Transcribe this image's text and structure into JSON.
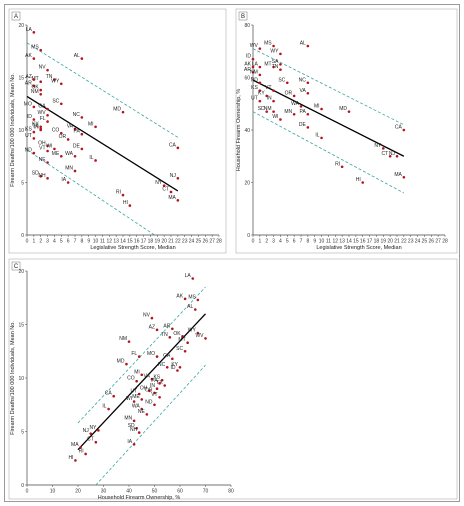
{
  "colors": {
    "point": "#b4141e",
    "fit": "#000000",
    "band": "#3aa6a0",
    "axis": "#444444"
  },
  "chart_data": [
    {
      "type": "scatter",
      "panel": "A",
      "xlabel": "Legislative Strength Score, Median",
      "ylabel": "Firearm Deaths/100 000 Individuals, Mean No.",
      "xlim": [
        0,
        28
      ],
      "ylim": [
        0,
        20
      ],
      "xticks": [
        0,
        1,
        2,
        3,
        4,
        5,
        6,
        7,
        8,
        9,
        10,
        11,
        12,
        13,
        14,
        15,
        16,
        17,
        18,
        19,
        20,
        21,
        22,
        23,
        24,
        25,
        26,
        27,
        28
      ],
      "yticks": [
        0,
        5,
        10,
        15,
        20
      ],
      "fit": [
        [
          0,
          13.2
        ],
        [
          22,
          4.2
        ]
      ],
      "band_upper": [
        [
          0,
          18.3
        ],
        [
          22,
          9.3
        ]
      ],
      "band_lower": [
        [
          0,
          8.1
        ],
        [
          18.6,
          0
        ]
      ],
      "points": [
        {
          "label": "LA",
          "x": 1,
          "y": 19.3
        },
        {
          "label": "MS",
          "x": 2,
          "y": 17.6
        },
        {
          "label": "AK",
          "x": 1,
          "y": 16.8
        },
        {
          "label": "AL",
          "x": 8,
          "y": 16.8
        },
        {
          "label": "NV",
          "x": 3,
          "y": 15.7
        },
        {
          "label": "MT",
          "x": 2,
          "y": 14.6
        },
        {
          "label": "AZ",
          "x": 1,
          "y": 14.8
        },
        {
          "label": "TN",
          "x": 4,
          "y": 14.8
        },
        {
          "label": "WY",
          "x": 5,
          "y": 14.4
        },
        {
          "label": "AR",
          "x": 1,
          "y": 14.2
        },
        {
          "label": "OK",
          "x": 2,
          "y": 13.8
        },
        {
          "label": "NM",
          "x": 2,
          "y": 13.4
        },
        {
          "label": "SC",
          "x": 5,
          "y": 12.5
        },
        {
          "label": "MO",
          "x": 1,
          "y": 12.2
        },
        {
          "label": "GA",
          "x": 3,
          "y": 12.0
        },
        {
          "label": "WV",
          "x": 3,
          "y": 11.4
        },
        {
          "label": "NC",
          "x": 8,
          "y": 11.2
        },
        {
          "label": "MD",
          "x": 14,
          "y": 11.7
        },
        {
          "label": "ID",
          "x": 1,
          "y": 11.0
        },
        {
          "label": "FL",
          "x": 3,
          "y": 10.8
        },
        {
          "label": "KY",
          "x": 2,
          "y": 10.3
        },
        {
          "label": "IN",
          "x": 2,
          "y": 10.0
        },
        {
          "label": "KS",
          "x": 1,
          "y": 9.8
        },
        {
          "label": "TX",
          "x": 2,
          "y": 10.1
        },
        {
          "label": "CO",
          "x": 5,
          "y": 9.7
        },
        {
          "label": "VA",
          "x": 7,
          "y": 10.1
        },
        {
          "label": "MI",
          "x": 10,
          "y": 10.3
        },
        {
          "label": "PA",
          "x": 8,
          "y": 9.6
        },
        {
          "label": "UT",
          "x": 1,
          "y": 9.2
        },
        {
          "label": "OR",
          "x": 6,
          "y": 9.1
        },
        {
          "label": "OH",
          "x": 3,
          "y": 8.5
        },
        {
          "label": "CA",
          "x": 22,
          "y": 8.3
        },
        {
          "label": "VT",
          "x": 3,
          "y": 8.0
        },
        {
          "label": "WI",
          "x": 4,
          "y": 8.2
        },
        {
          "label": "DE",
          "x": 8,
          "y": 8.2
        },
        {
          "label": "ND",
          "x": 1,
          "y": 7.8
        },
        {
          "label": "ME",
          "x": 5,
          "y": 7.5
        },
        {
          "label": "WA",
          "x": 7,
          "y": 7.5
        },
        {
          "label": "IL",
          "x": 10,
          "y": 7.1
        },
        {
          "label": "NE",
          "x": 3,
          "y": 6.9
        },
        {
          "label": "MN",
          "x": 7,
          "y": 6.1
        },
        {
          "label": "SD",
          "x": 2,
          "y": 5.6
        },
        {
          "label": "NH",
          "x": 3,
          "y": 5.4
        },
        {
          "label": "IA",
          "x": 6,
          "y": 5.0
        },
        {
          "label": "NJ",
          "x": 22,
          "y": 5.4
        },
        {
          "label": "NY",
          "x": 20,
          "y": 4.7
        },
        {
          "label": "RI",
          "x": 14,
          "y": 3.8
        },
        {
          "label": "CT",
          "x": 21,
          "y": 4.1
        },
        {
          "label": "MA",
          "x": 22,
          "y": 3.3
        },
        {
          "label": "HI",
          "x": 15,
          "y": 2.8
        }
      ]
    },
    {
      "type": "scatter",
      "panel": "B",
      "xlabel": "Legislative Strength Score, Median",
      "ylabel": "Household Firearm Ownership, %",
      "xlim": [
        0,
        28
      ],
      "ylim": [
        0,
        80
      ],
      "xticks": [
        0,
        1,
        2,
        3,
        4,
        5,
        6,
        7,
        8,
        9,
        10,
        11,
        12,
        13,
        14,
        15,
        16,
        17,
        18,
        19,
        20,
        21,
        22,
        23,
        24,
        25,
        26,
        27,
        28
      ],
      "yticks": [
        0,
        20,
        40,
        60,
        80
      ],
      "fit": [
        [
          0,
          59
        ],
        [
          22,
          30
        ]
      ],
      "band_upper": [
        [
          0,
          71
        ],
        [
          22,
          42
        ]
      ],
      "band_lower": [
        [
          0,
          47
        ],
        [
          22,
          16
        ]
      ],
      "points": [
        {
          "label": "WV",
          "x": 1,
          "y": 71
        },
        {
          "label": "MS",
          "x": 3,
          "y": 72
        },
        {
          "label": "AL",
          "x": 8,
          "y": 72
        },
        {
          "label": "WY",
          "x": 4,
          "y": 69
        },
        {
          "label": "ID",
          "x": 0,
          "y": 67
        },
        {
          "label": "AK",
          "x": 0,
          "y": 64
        },
        {
          "label": "LA",
          "x": 1,
          "y": 64
        },
        {
          "label": "MT",
          "x": 3,
          "y": 64
        },
        {
          "label": "SA",
          "x": 4,
          "y": 65
        },
        {
          "label": "TN",
          "x": 4,
          "y": 63
        },
        {
          "label": "AR",
          "x": 0,
          "y": 62
        },
        {
          "label": "NM",
          "x": 1,
          "y": 61
        },
        {
          "label": "ND",
          "x": 1,
          "y": 58
        },
        {
          "label": "SC",
          "x": 5,
          "y": 58
        },
        {
          "label": "NC",
          "x": 8,
          "y": 58
        },
        {
          "label": "KS",
          "x": 1,
          "y": 55
        },
        {
          "label": "VT",
          "x": 3,
          "y": 55
        },
        {
          "label": "VA",
          "x": 8,
          "y": 54
        },
        {
          "label": "OR",
          "x": 6,
          "y": 53
        },
        {
          "label": "UT",
          "x": 1,
          "y": 51
        },
        {
          "label": "KY",
          "x": 2,
          "y": 53
        },
        {
          "label": "IN",
          "x": 3,
          "y": 51
        },
        {
          "label": "WA",
          "x": 7,
          "y": 49
        },
        {
          "label": "MI",
          "x": 10,
          "y": 48
        },
        {
          "label": "MD",
          "x": 14,
          "y": 47
        },
        {
          "label": "SD",
          "x": 2,
          "y": 47
        },
        {
          "label": "NM",
          "x": 3,
          "y": 47
        },
        {
          "label": "MN",
          "x": 6,
          "y": 46
        },
        {
          "label": "WI",
          "x": 4,
          "y": 44
        },
        {
          "label": "PA",
          "x": 8,
          "y": 46
        },
        {
          "label": "DE",
          "x": 8,
          "y": 41
        },
        {
          "label": "IL",
          "x": 10,
          "y": 37
        },
        {
          "label": "CA",
          "x": 22,
          "y": 40
        },
        {
          "label": "NY",
          "x": 19,
          "y": 33
        },
        {
          "label": "NJ",
          "x": 21,
          "y": 30
        },
        {
          "label": "CT",
          "x": 20,
          "y": 30
        },
        {
          "label": "RI",
          "x": 13,
          "y": 26
        },
        {
          "label": "MA",
          "x": 22,
          "y": 22
        },
        {
          "label": "HI",
          "x": 16,
          "y": 20
        }
      ]
    },
    {
      "type": "scatter",
      "panel": "C",
      "xlabel": "Household Firearm Ownership, %",
      "ylabel": "Firearm Deaths/100 000 Individuals, Mean No.",
      "xlim": [
        0,
        80
      ],
      "ylim": [
        0,
        20
      ],
      "xticks": [
        0,
        10,
        20,
        30,
        40,
        50,
        60,
        70,
        80
      ],
      "yticks": [
        0,
        5,
        10,
        15,
        20
      ],
      "fit": [
        [
          20,
          3.3
        ],
        [
          70,
          16.0
        ]
      ],
      "band_upper": [
        [
          20,
          5.8
        ],
        [
          70,
          18.5
        ]
      ],
      "band_lower": [
        [
          27,
          0
        ],
        [
          70,
          11.2
        ]
      ],
      "points": [
        {
          "label": "LA",
          "x": 65,
          "y": 19.3
        },
        {
          "label": "AK",
          "x": 62,
          "y": 17.4
        },
        {
          "label": "MS",
          "x": 67,
          "y": 17.3
        },
        {
          "label": "AL",
          "x": 66,
          "y": 16.4
        },
        {
          "label": "NV",
          "x": 49,
          "y": 15.6
        },
        {
          "label": "AZ",
          "x": 51,
          "y": 14.5
        },
        {
          "label": "AR",
          "x": 57,
          "y": 14.6
        },
        {
          "label": "WY",
          "x": 67,
          "y": 14.2
        },
        {
          "label": "TN",
          "x": 56,
          "y": 13.8
        },
        {
          "label": "OK",
          "x": 61,
          "y": 13.9
        },
        {
          "label": "WV",
          "x": 70,
          "y": 13.7
        },
        {
          "label": "NM",
          "x": 40,
          "y": 13.4
        },
        {
          "label": "MT",
          "x": 63,
          "y": 13.3
        },
        {
          "label": "SC",
          "x": 62,
          "y": 12.5
        },
        {
          "label": "FL",
          "x": 44,
          "y": 12.0
        },
        {
          "label": "MO",
          "x": 51,
          "y": 12.0
        },
        {
          "label": "GA",
          "x": 57,
          "y": 11.8
        },
        {
          "label": "MD",
          "x": 39,
          "y": 11.3
        },
        {
          "label": "KY",
          "x": 60,
          "y": 11.0
        },
        {
          "label": "NC",
          "x": 55,
          "y": 11.0
        },
        {
          "label": "ID",
          "x": 59,
          "y": 10.7
        },
        {
          "label": "MI",
          "x": 45,
          "y": 10.3
        },
        {
          "label": "CO",
          "x": 43,
          "y": 9.7
        },
        {
          "label": "VA",
          "x": 49,
          "y": 9.9
        },
        {
          "label": "KS",
          "x": 53,
          "y": 9.8
        },
        {
          "label": "TX",
          "x": 54,
          "y": 9.3
        },
        {
          "label": "PA",
          "x": 52,
          "y": 9.5
        },
        {
          "label": "IN",
          "x": 51,
          "y": 9.0
        },
        {
          "label": "OH",
          "x": 48,
          "y": 8.8
        },
        {
          "label": "UT",
          "x": 44,
          "y": 8.5
        },
        {
          "label": "OR",
          "x": 50,
          "y": 8.6
        },
        {
          "label": "CA",
          "x": 34,
          "y": 8.3
        },
        {
          "label": "ME",
          "x": 45,
          "y": 8.0
        },
        {
          "label": "VT",
          "x": 52,
          "y": 8.2
        },
        {
          "label": "WI",
          "x": 42,
          "y": 7.8
        },
        {
          "label": "ND",
          "x": 50,
          "y": 7.5
        },
        {
          "label": "IL",
          "x": 32,
          "y": 7.1
        },
        {
          "label": "WA",
          "x": 45,
          "y": 7.1
        },
        {
          "label": "NE",
          "x": 47,
          "y": 6.6
        },
        {
          "label": "MN",
          "x": 42,
          "y": 6.0
        },
        {
          "label": "SD",
          "x": 43,
          "y": 5.3
        },
        {
          "label": "NH",
          "x": 44,
          "y": 4.9
        },
        {
          "label": "NY",
          "x": 28,
          "y": 5.1
        },
        {
          "label": "NJ",
          "x": 25,
          "y": 4.8
        },
        {
          "label": "CT",
          "x": 27,
          "y": 4.0
        },
        {
          "label": "IA",
          "x": 42,
          "y": 3.8
        },
        {
          "label": "MA",
          "x": 21,
          "y": 3.5
        },
        {
          "label": "RI",
          "x": 23,
          "y": 2.9
        },
        {
          "label": "HI",
          "x": 19,
          "y": 2.3
        }
      ]
    }
  ]
}
